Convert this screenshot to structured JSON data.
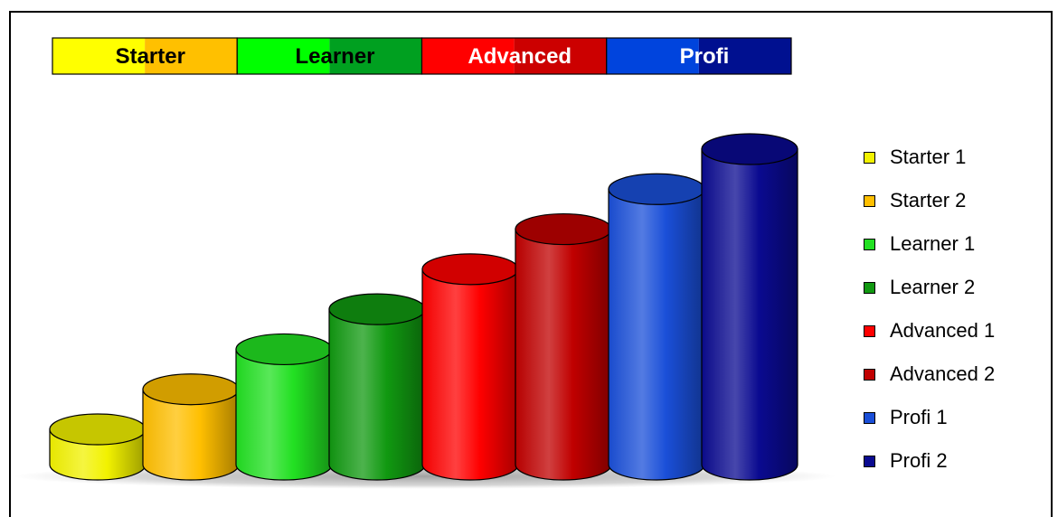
{
  "chart_data": {
    "type": "bar",
    "style": "3d-cylinder",
    "categories": [
      "Starter 1",
      "Starter 2",
      "Learner 1",
      "Learner 2",
      "Advanced 1",
      "Advanced 2",
      "Profi 1",
      "Profi 2"
    ],
    "values": [
      1,
      2,
      3,
      4,
      5,
      6,
      7,
      8
    ],
    "colors": [
      "#f2f200",
      "#ffbf00",
      "#22e022",
      "#119911",
      "#ff0000",
      "#c00000",
      "#1a4fd8",
      "#0a0a90"
    ],
    "ylim": [
      0,
      8
    ],
    "grid": false,
    "legend": "right",
    "levels": [
      {
        "label": "Starter",
        "colors": [
          "#ffff00",
          "#ffc000"
        ],
        "text_color": "#000000"
      },
      {
        "label": "Learner",
        "colors": [
          "#00ff00",
          "#00a020"
        ],
        "text_color": "#000000"
      },
      {
        "label": "Advanced",
        "colors": [
          "#ff0000",
          "#cc0000"
        ],
        "text_color": "#ffffff"
      },
      {
        "label": "Profi",
        "colors": [
          "#0044dd",
          "#001090"
        ],
        "text_color": "#ffffff"
      }
    ]
  }
}
